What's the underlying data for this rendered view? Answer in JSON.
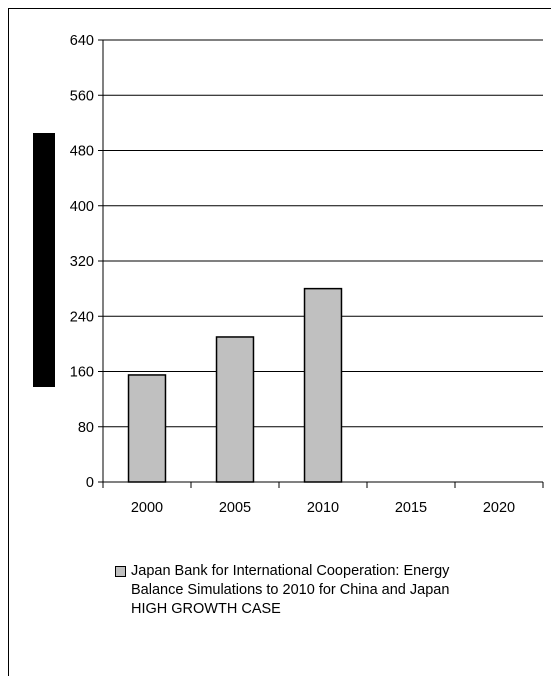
{
  "chart_data": {
    "type": "bar",
    "categories": [
      "2000",
      "2005",
      "2010",
      "2015",
      "2020"
    ],
    "series": [
      {
        "name": "Japan Bank for International Cooperation: Energy Balance Simulations to 2010 for China and Japan HIGH GROWTH CASE",
        "values": [
          155,
          210,
          280,
          null,
          null
        ]
      }
    ],
    "yticks": [
      "0",
      "80",
      "160",
      "240",
      "320",
      "400",
      "480",
      "560",
      "640"
    ],
    "ylim": [
      0,
      640
    ],
    "grid": true,
    "legend_position": "bottom",
    "colors": {
      "bar_fill": "#c0c0c0",
      "bar_stroke": "#000000",
      "ylabel_block": "#000000"
    }
  },
  "legend": {
    "label": "Japan Bank for International Cooperation: Energy\nBalance Simulations to 2010 for China and Japan\nHIGH GROWTH CASE"
  }
}
